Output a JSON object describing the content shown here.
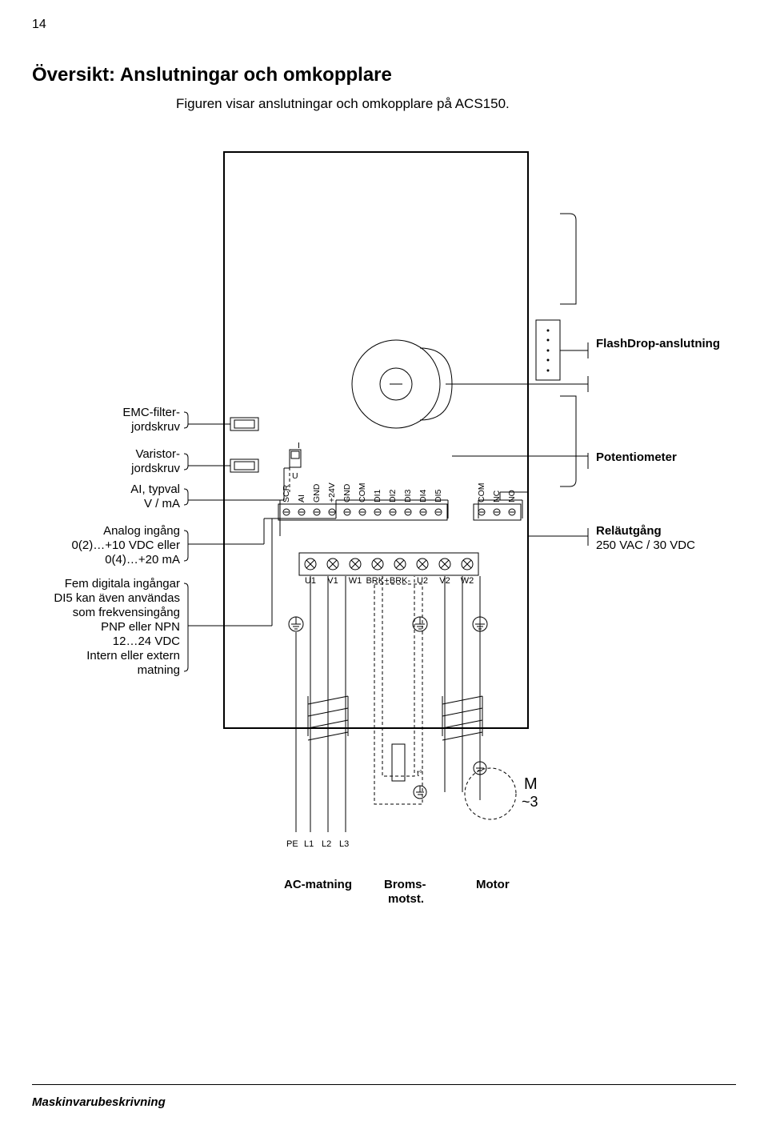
{
  "page_number": "14",
  "heading": "Översikt: Anslutningar och omkopplare",
  "subtitle": "Figuren visar anslutningar och omkopplare på ACS150.",
  "footer": "Maskinvarubeskrivning",
  "left": {
    "emc": "EMC-filter-\njordskruv",
    "var": "Varistor-\njordskruv",
    "ai_typ1": "AI, typval",
    "ai_typ2": "V / mA",
    "analog1": "Analog ingång",
    "analog2": "0(2)…+10 VDC eller",
    "analog3": "0(4)…+20 mA",
    "di1": "Fem digitala ingångar",
    "di2": "DI5 kan även användas",
    "di3": "som frekvensingång",
    "di4": "PNP eller NPN",
    "di5": "12…24 VDC",
    "di6": "Intern eller extern",
    "di7": "matning"
  },
  "right": {
    "flash": "FlashDrop-anslutning",
    "pot": "Potentiometer",
    "relay1": "Reläutgång",
    "relay2": "250 VAC / 30 VDC"
  },
  "bottom": {
    "pe": "PE",
    "l1": "L1",
    "l2": "L2",
    "l3": "L3",
    "ac": "AC-matning",
    "brake": "Broms-\nmotst.",
    "motor": "Motor",
    "M": "M",
    "tilde": "~3"
  },
  "terminals": [
    "SCR",
    "AI",
    "GND",
    "+24V",
    "GND",
    "COM",
    "DI1",
    "DI2",
    "DI3",
    "DI4",
    "DI5"
  ],
  "terminals2": [
    "COM",
    "NC",
    "NO"
  ],
  "pwr": [
    "U1",
    "V1",
    "W1",
    "BRK+",
    "BRK-",
    "U2",
    "V2",
    "W2"
  ]
}
